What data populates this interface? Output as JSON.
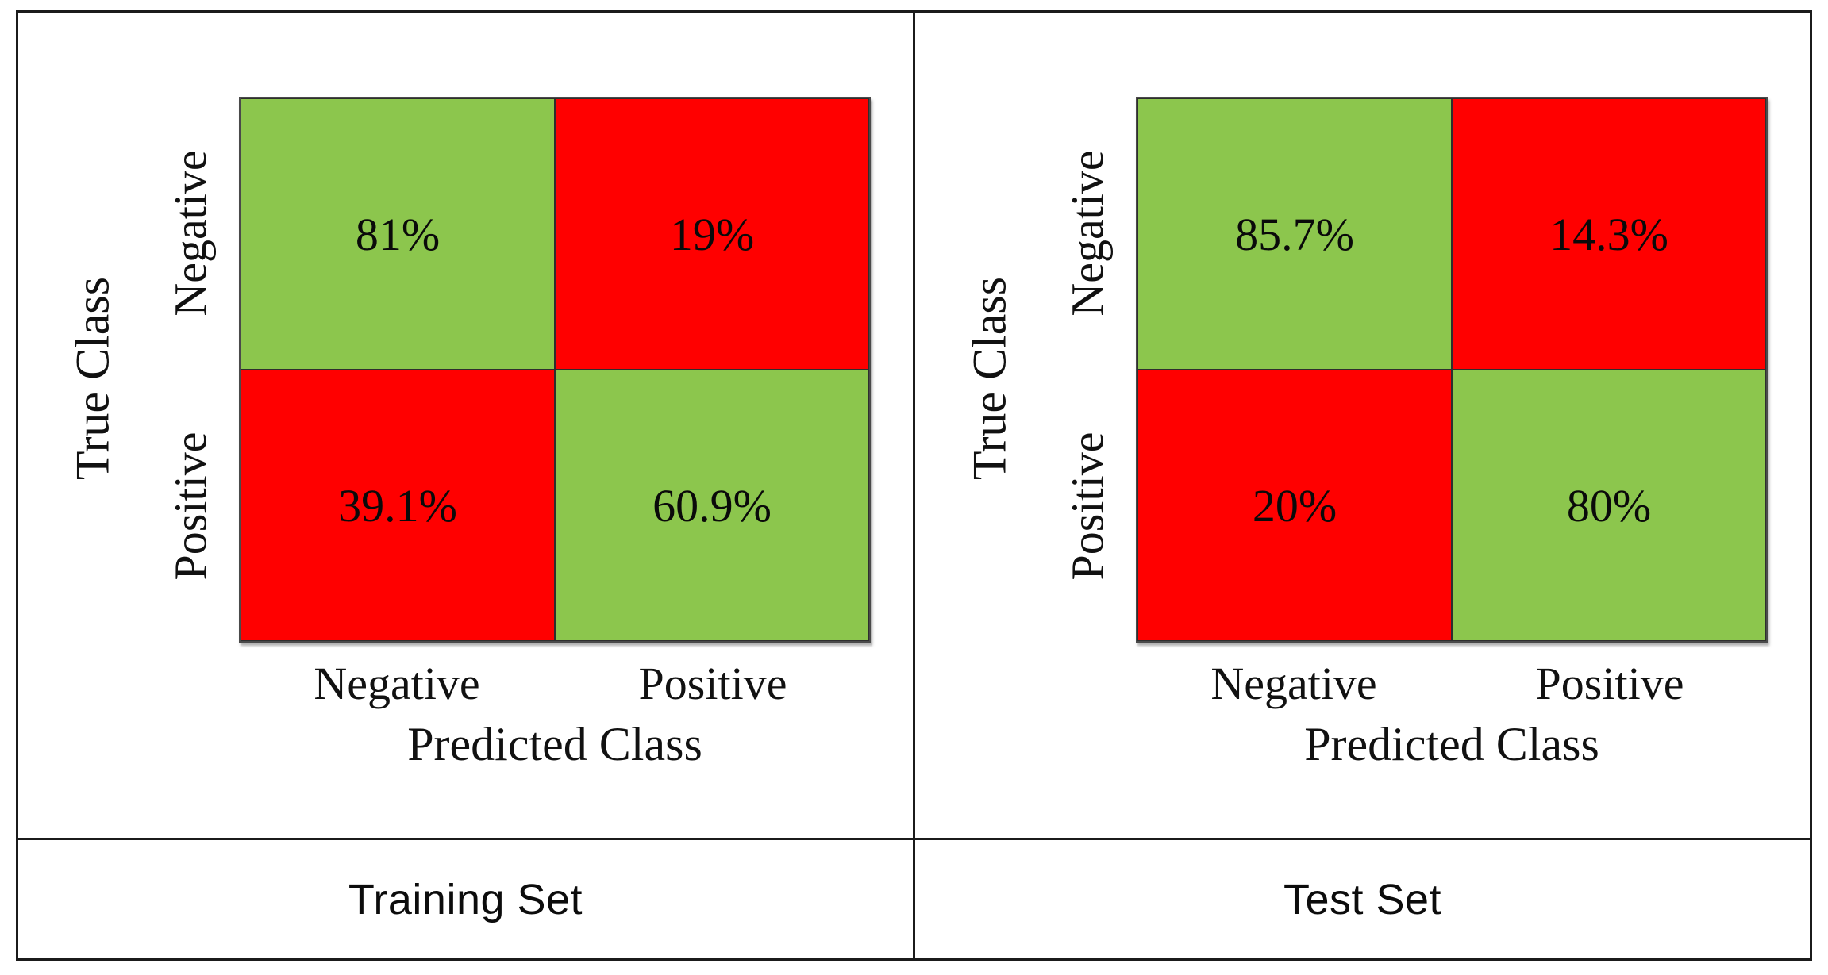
{
  "figure": {
    "kind": "confusion-matrix-comparison",
    "colors": {
      "green": "#8CC64D",
      "red": "#FF0000",
      "frame": "#1b1b1b"
    }
  },
  "panels": [
    {
      "caption": "Training Set",
      "y_axis_label": "True Class",
      "x_axis_label": "Predicted Class",
      "row_labels": [
        "Negative",
        "Positive"
      ],
      "col_labels": [
        "Negative",
        "Positive"
      ],
      "cells": [
        {
          "value": "81%",
          "tone": "green"
        },
        {
          "value": "19%",
          "tone": "red"
        },
        {
          "value": "39.1%",
          "tone": "red"
        },
        {
          "value": "60.9%",
          "tone": "green"
        }
      ]
    },
    {
      "caption": "Test Set",
      "y_axis_label": "True Class",
      "x_axis_label": "Predicted Class",
      "row_labels": [
        "Negative",
        "Positive"
      ],
      "col_labels": [
        "Negative",
        "Positive"
      ],
      "cells": [
        {
          "value": "85.7%",
          "tone": "green"
        },
        {
          "value": "14.3%",
          "tone": "red"
        },
        {
          "value": "20%",
          "tone": "red"
        },
        {
          "value": "80%",
          "tone": "green"
        }
      ]
    }
  ],
  "chart_data": [
    {
      "type": "heatmap",
      "title": "Training Set",
      "xlabel": "Predicted Class",
      "ylabel": "True Class",
      "x_categories": [
        "Negative",
        "Positive"
      ],
      "y_categories": [
        "Negative",
        "Positive"
      ],
      "values_percent": [
        [
          81,
          19
        ],
        [
          39.1,
          60.9
        ]
      ],
      "cell_colors": [
        [
          "green",
          "red"
        ],
        [
          "red",
          "green"
        ]
      ],
      "legend": "none",
      "grid": false
    },
    {
      "type": "heatmap",
      "title": "Test Set",
      "xlabel": "Predicted Class",
      "ylabel": "True Class",
      "x_categories": [
        "Negative",
        "Positive"
      ],
      "y_categories": [
        "Negative",
        "Positive"
      ],
      "values_percent": [
        [
          85.7,
          14.3
        ],
        [
          20,
          80
        ]
      ],
      "cell_colors": [
        [
          "green",
          "red"
        ],
        [
          "red",
          "green"
        ]
      ],
      "legend": "none",
      "grid": false
    }
  ]
}
